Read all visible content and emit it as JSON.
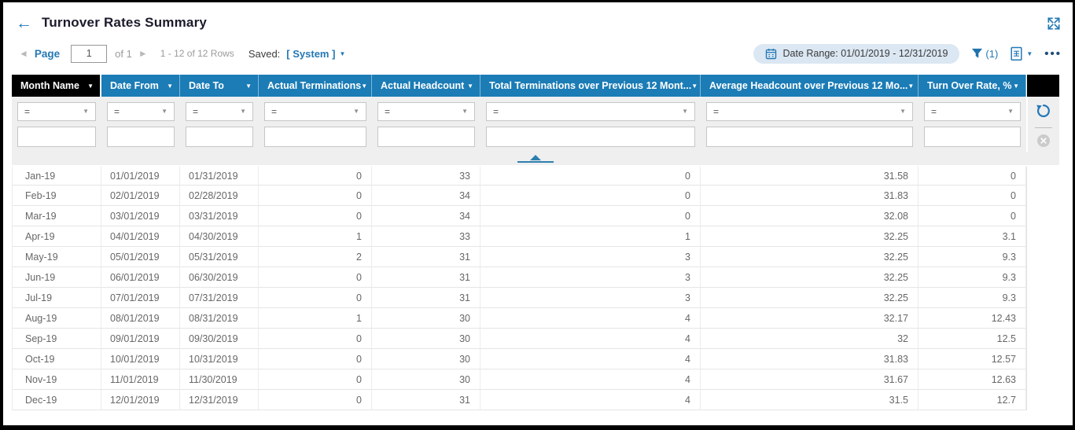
{
  "titlebar": {
    "title": "Turnover Rates Summary"
  },
  "toolbar": {
    "page_label": "Page",
    "page_value": "1",
    "of_label": "of 1",
    "rows_info": "1 - 12 of 12 Rows",
    "saved_label": "Saved:",
    "saved_value": "[ System ]",
    "date_range": "Date Range: 01/01/2019 - 12/31/2019",
    "filter_count": "(1)",
    "ellipsis": "•••"
  },
  "icons": {
    "back": "←",
    "chevron_left": "◄",
    "chevron_right": "►",
    "caret_down": "▼"
  },
  "filters": {
    "operator": "="
  },
  "table": {
    "columns": [
      {
        "id": "month_name",
        "label": "Month Name",
        "align": "left"
      },
      {
        "id": "date_from",
        "label": "Date From",
        "align": "date"
      },
      {
        "id": "date_to",
        "label": "Date To",
        "align": "date"
      },
      {
        "id": "actual_terminations",
        "label": "Actual Terminations",
        "align": "num"
      },
      {
        "id": "actual_headcount",
        "label": "Actual Headcount",
        "align": "num"
      },
      {
        "id": "total_terminations_prev_12",
        "label": "Total Terminations over Previous 12 Mont...",
        "align": "num"
      },
      {
        "id": "avg_headcount_prev_12",
        "label": "Average Headcount over Previous 12 Mo...",
        "align": "num"
      },
      {
        "id": "turnover_rate",
        "label": "Turn Over Rate, %",
        "align": "num"
      }
    ],
    "rows": [
      [
        "Jan-19",
        "01/01/2019",
        "01/31/2019",
        "0",
        "33",
        "0",
        "31.58",
        "0"
      ],
      [
        "Feb-19",
        "02/01/2019",
        "02/28/2019",
        "0",
        "34",
        "0",
        "31.83",
        "0"
      ],
      [
        "Mar-19",
        "03/01/2019",
        "03/31/2019",
        "0",
        "34",
        "0",
        "32.08",
        "0"
      ],
      [
        "Apr-19",
        "04/01/2019",
        "04/30/2019",
        "1",
        "33",
        "1",
        "32.25",
        "3.1"
      ],
      [
        "May-19",
        "05/01/2019",
        "05/31/2019",
        "2",
        "31",
        "3",
        "32.25",
        "9.3"
      ],
      [
        "Jun-19",
        "06/01/2019",
        "06/30/2019",
        "0",
        "31",
        "3",
        "32.25",
        "9.3"
      ],
      [
        "Jul-19",
        "07/01/2019",
        "07/31/2019",
        "0",
        "31",
        "3",
        "32.25",
        "9.3"
      ],
      [
        "Aug-19",
        "08/01/2019",
        "08/31/2019",
        "1",
        "30",
        "4",
        "32.17",
        "12.43"
      ],
      [
        "Sep-19",
        "09/01/2019",
        "09/30/2019",
        "0",
        "30",
        "4",
        "32",
        "12.5"
      ],
      [
        "Oct-19",
        "10/01/2019",
        "10/31/2019",
        "0",
        "30",
        "4",
        "31.83",
        "12.57"
      ],
      [
        "Nov-19",
        "11/01/2019",
        "11/30/2019",
        "0",
        "30",
        "4",
        "31.67",
        "12.63"
      ],
      [
        "Dec-19",
        "12/01/2019",
        "12/31/2019",
        "0",
        "31",
        "4",
        "31.5",
        "12.7"
      ]
    ]
  },
  "colors": {
    "header_blue": "#1b7cb6",
    "selected_header_black": "#000000",
    "accent_blue": "#2478b5",
    "pill_bg": "#dbe7f2",
    "filter_bg": "#efeff0"
  }
}
